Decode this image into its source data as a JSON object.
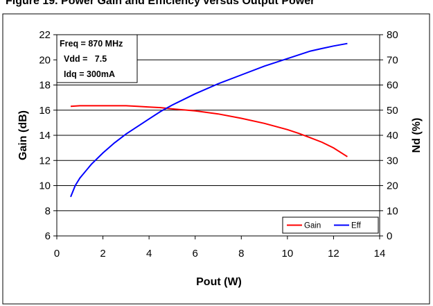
{
  "chart_data": {
    "type": "line",
    "title": "Figure 19. Power Gain and Efficiency versus Output Power",
    "xlabel": "Pout (W)",
    "ylabel": "Gain (dB)",
    "y2label": "Nd (%)",
    "xlim": [
      0,
      14
    ],
    "ylim": [
      6,
      22
    ],
    "y2lim": [
      0,
      80
    ],
    "xticks": [
      0,
      2,
      4,
      6,
      8,
      10,
      12,
      14
    ],
    "yticks": [
      6,
      8,
      10,
      12,
      14,
      16,
      18,
      20,
      22
    ],
    "y2ticks": [
      0,
      10,
      20,
      30,
      40,
      50,
      60,
      70,
      80
    ],
    "grid": "horizontal",
    "legend_position": "bottom-right",
    "annotation": [
      "Freq = 870 MHz",
      "Vdd =   7.5",
      "Idq = 300mA"
    ],
    "series": [
      {
        "name": "Gain",
        "axis": "left",
        "color": "#ff0000",
        "x": [
          0.6,
          1.0,
          2.0,
          3.0,
          3.5,
          4.0,
          4.5,
          5.0,
          6.0,
          7.0,
          8.0,
          9.0,
          10.0,
          10.5,
          11.0,
          11.5,
          12.0,
          12.6
        ],
        "y": [
          16.3,
          16.35,
          16.35,
          16.35,
          16.3,
          16.25,
          16.2,
          16.1,
          15.95,
          15.7,
          15.35,
          14.95,
          14.45,
          14.15,
          13.8,
          13.45,
          13.0,
          12.3
        ]
      },
      {
        "name": "Eff",
        "axis": "right",
        "color": "#0000ff",
        "x": [
          0.6,
          0.8,
          1.0,
          1.5,
          2.0,
          2.5,
          3.0,
          3.5,
          4.0,
          4.5,
          5.0,
          6.0,
          7.0,
          8.0,
          9.0,
          10.0,
          11.0,
          11.5,
          12.0,
          12.6
        ],
        "y": [
          15.5,
          20,
          23,
          28.5,
          33,
          37,
          40.5,
          43.5,
          46.5,
          49.5,
          52,
          56.5,
          60.5,
          64,
          67.5,
          70.5,
          73.5,
          74.5,
          75.5,
          76.5
        ]
      }
    ]
  }
}
